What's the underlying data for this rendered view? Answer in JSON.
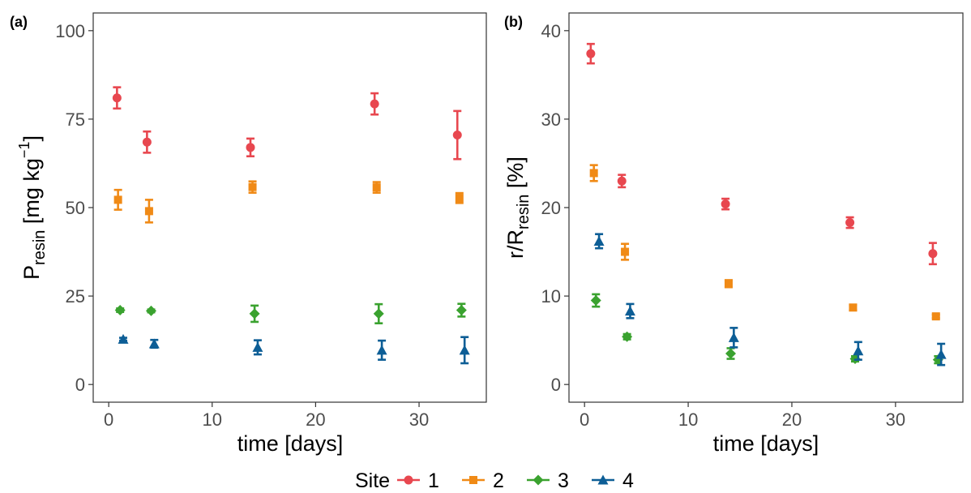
{
  "panels": [
    {
      "tag": "(a)",
      "xlabel": "time [days]",
      "ylabel_main": "P",
      "ylabel_sub": "resin",
      "ylabel_rest": " [mg kg",
      "ylabel_sup": "−1",
      "ylabel_end": "]"
    },
    {
      "tag": "(b)",
      "xlabel": "time [days]",
      "ylabel_main": "r/R",
      "ylabel_sub": "resin",
      "ylabel_rest": " [%]",
      "ylabel_sup": "",
      "ylabel_end": ""
    }
  ],
  "legend": {
    "title": "Site",
    "items": [
      {
        "label": "1",
        "color": "#e8474f",
        "shape": "circle"
      },
      {
        "label": "2",
        "color": "#f08a16",
        "shape": "square"
      },
      {
        "label": "3",
        "color": "#3aa22f",
        "shape": "diamond"
      },
      {
        "label": "4",
        "color": "#0d5e96",
        "shape": "triangle"
      }
    ]
  },
  "chart_data": [
    {
      "type": "scatter",
      "ylim": [
        -5,
        105
      ],
      "xlim": [
        -1.5,
        36.5
      ],
      "yticks": [
        0,
        25,
        50,
        75,
        100
      ],
      "xticks": [
        0,
        10,
        20,
        30
      ],
      "grid": false,
      "series": [
        {
          "name": "1",
          "x": [
            0.8,
            3.7,
            13.7,
            25.7,
            33.7
          ],
          "y": [
            81,
            68.5,
            67,
            79.3,
            70.5
          ],
          "err": [
            3,
            3,
            2.5,
            3,
            6.8
          ]
        },
        {
          "name": "2",
          "x": [
            0.9,
            3.9,
            13.9,
            25.9,
            33.9
          ],
          "y": [
            52.2,
            49,
            55.8,
            55.7,
            52.7
          ],
          "err": [
            2.8,
            3.2,
            1.6,
            1.5,
            1.4
          ]
        },
        {
          "name": "3",
          "x": [
            1.1,
            4.1,
            14.1,
            26.1,
            34.1
          ],
          "y": [
            21,
            20.8,
            20,
            20,
            21
          ],
          "err": [
            0.5,
            0.4,
            2.3,
            2.7,
            1.8
          ]
        },
        {
          "name": "4",
          "x": [
            1.4,
            4.4,
            14.4,
            26.4,
            34.4
          ],
          "y": [
            12.8,
            11.5,
            10.5,
            9.7,
            9.7
          ],
          "err": [
            0.4,
            1.1,
            2,
            2.7,
            3.7
          ]
        }
      ]
    },
    {
      "type": "scatter",
      "ylim": [
        -2,
        42
      ],
      "xlim": [
        -1.5,
        36.5
      ],
      "yticks": [
        0,
        10,
        20,
        30,
        40
      ],
      "xticks": [
        0,
        10,
        20,
        30
      ],
      "grid": false,
      "series": [
        {
          "name": "1",
          "x": [
            0.6,
            3.6,
            13.6,
            25.6,
            33.6
          ],
          "y": [
            37.4,
            23,
            20.4,
            18.3,
            14.8
          ],
          "err": [
            1.1,
            0.7,
            0.6,
            0.6,
            1.2
          ]
        },
        {
          "name": "2",
          "x": [
            0.9,
            3.9,
            13.9,
            25.9,
            33.9
          ],
          "y": [
            23.9,
            15,
            11.4,
            8.7,
            7.7
          ],
          "err": [
            0.9,
            0.9,
            0.4,
            0.3,
            0.2
          ]
        },
        {
          "name": "3",
          "x": [
            1.1,
            4.1,
            14.1,
            26.1,
            34.1
          ],
          "y": [
            9.5,
            5.4,
            3.5,
            2.9,
            2.8
          ],
          "err": [
            0.7,
            0.3,
            0.6,
            0.3,
            0.4
          ]
        },
        {
          "name": "4",
          "x": [
            1.4,
            4.4,
            14.4,
            26.4,
            34.4
          ],
          "y": [
            16.2,
            8.3,
            5.3,
            3.8,
            3.4
          ],
          "err": [
            0.8,
            0.8,
            1.1,
            1,
            1.2
          ]
        }
      ]
    }
  ]
}
